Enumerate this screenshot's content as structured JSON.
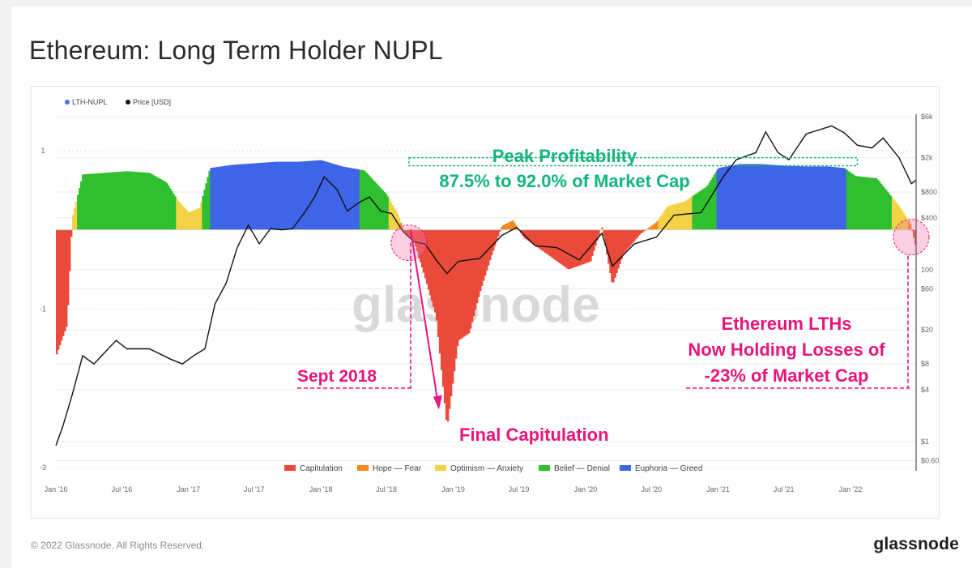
{
  "title": "Ethereum: Long Term Holder NUPL",
  "footer": "© 2022 Glassnode. All Rights Reserved.",
  "brand": "glassnode",
  "watermark": "glassnode",
  "chart_data": {
    "type": "bar",
    "legend_top": [
      {
        "name": "LTH-NUPL",
        "color": "#4a6cf7"
      },
      {
        "name": "Price [USD]",
        "color": "#111111"
      }
    ],
    "legend_bottom": [
      {
        "name": "Capitulation",
        "color": "#ea4a3a"
      },
      {
        "name": "Hope — Fear",
        "color": "#f5891f"
      },
      {
        "name": "Optimism — Anxiety",
        "color": "#f3d246"
      },
      {
        "name": "Belief — Denial",
        "color": "#2fbf2f"
      },
      {
        "name": "Euphoria — Greed",
        "color": "#3e64e8"
      }
    ],
    "x_ticks": [
      "Jan '16",
      "Jul '16",
      "Jan '17",
      "Jul '17",
      "Jan '18",
      "Jul '18",
      "Jan '19",
      "Jul '19",
      "Jan '20",
      "Jul '20",
      "Jan '21",
      "Jul '21",
      "Jan '22"
    ],
    "x_range": [
      "2016-01-01",
      "2022-07-01"
    ],
    "y_left_ticks": [
      {
        "label": "1",
        "value": 1
      },
      {
        "label": "-1",
        "value": -1
      },
      {
        "label": "-3",
        "value": -3
      }
    ],
    "y_left_range": [
      -3,
      1.5
    ],
    "y_right_ticks": [
      {
        "label": "$6k",
        "value": 6000
      },
      {
        "label": "$2k",
        "value": 2000
      },
      {
        "label": "$800",
        "value": 800
      },
      {
        "label": "$400",
        "value": 400
      },
      {
        "label": "100",
        "value": 100
      },
      {
        "label": "$60",
        "value": 60
      },
      {
        "label": "$20",
        "value": 20
      },
      {
        "label": "$8",
        "value": 8
      },
      {
        "label": "$4",
        "value": 4
      },
      {
        "label": "$1",
        "value": 1
      },
      {
        "label": "$0.60",
        "value": 0.6
      }
    ],
    "y_right_scale": "log",
    "y_right_range": [
      0.5,
      7000
    ],
    "nupl_series": [
      [
        "2016-01-01",
        -1.6
      ],
      [
        "2016-02-01",
        -1.2
      ],
      [
        "2016-02-15",
        0.15
      ],
      [
        "2016-03-15",
        0.7
      ],
      [
        "2016-05-15",
        0.72
      ],
      [
        "2016-07-15",
        0.74
      ],
      [
        "2016-09-15",
        0.72
      ],
      [
        "2016-11-01",
        0.6
      ],
      [
        "2016-12-01",
        0.38
      ],
      [
        "2017-01-01",
        0.22
      ],
      [
        "2017-02-01",
        0.28
      ],
      [
        "2017-03-01",
        0.78
      ],
      [
        "2017-05-01",
        0.82
      ],
      [
        "2017-07-01",
        0.84
      ],
      [
        "2017-09-01",
        0.86
      ],
      [
        "2017-11-01",
        0.86
      ],
      [
        "2018-01-01",
        0.88
      ],
      [
        "2018-03-01",
        0.8
      ],
      [
        "2018-05-01",
        0.75
      ],
      [
        "2018-07-01",
        0.45
      ],
      [
        "2018-08-01",
        0.2
      ],
      [
        "2018-08-20",
        -0.05
      ],
      [
        "2018-09-15",
        -0.15
      ],
      [
        "2018-10-15",
        -0.6
      ],
      [
        "2018-11-15",
        -1.1
      ],
      [
        "2018-12-15",
        -2.5
      ],
      [
        "2019-01-15",
        -1.4
      ],
      [
        "2019-02-15",
        -1.3
      ],
      [
        "2019-03-15",
        -0.8
      ],
      [
        "2019-04-15",
        -0.35
      ],
      [
        "2019-05-15",
        0.05
      ],
      [
        "2019-06-15",
        0.12
      ],
      [
        "2019-07-15",
        -0.1
      ],
      [
        "2019-09-15",
        -0.3
      ],
      [
        "2019-11-15",
        -0.5
      ],
      [
        "2020-01-15",
        -0.4
      ],
      [
        "2020-02-15",
        0.05
      ],
      [
        "2020-03-15",
        -0.7
      ],
      [
        "2020-04-15",
        -0.3
      ],
      [
        "2020-06-01",
        -0.05
      ],
      [
        "2020-07-15",
        0.1
      ],
      [
        "2020-08-15",
        0.3
      ],
      [
        "2020-10-01",
        0.36
      ],
      [
        "2020-12-01",
        0.55
      ],
      [
        "2021-01-01",
        0.78
      ],
      [
        "2021-03-01",
        0.83
      ],
      [
        "2021-05-01",
        0.83
      ],
      [
        "2021-07-01",
        0.81
      ],
      [
        "2021-09-01",
        0.8
      ],
      [
        "2021-11-01",
        0.8
      ],
      [
        "2021-12-15",
        0.78
      ],
      [
        "2022-01-15",
        0.68
      ],
      [
        "2022-03-15",
        0.65
      ],
      [
        "2022-05-15",
        0.3
      ],
      [
        "2022-06-15",
        0.08
      ],
      [
        "2022-07-01",
        -0.23
      ]
    ],
    "price_series": [
      [
        "2016-01-01",
        0.9
      ],
      [
        "2016-01-20",
        1.5
      ],
      [
        "2016-02-15",
        3.5
      ],
      [
        "2016-03-15",
        10
      ],
      [
        "2016-04-15",
        8
      ],
      [
        "2016-06-15",
        15
      ],
      [
        "2016-07-15",
        12
      ],
      [
        "2016-09-15",
        12
      ],
      [
        "2016-11-15",
        9
      ],
      [
        "2016-12-15",
        8
      ],
      [
        "2017-01-15",
        10
      ],
      [
        "2017-02-15",
        12
      ],
      [
        "2017-03-15",
        40
      ],
      [
        "2017-04-15",
        70
      ],
      [
        "2017-05-15",
        180
      ],
      [
        "2017-06-15",
        330
      ],
      [
        "2017-07-15",
        200
      ],
      [
        "2017-08-15",
        300
      ],
      [
        "2017-09-15",
        290
      ],
      [
        "2017-10-15",
        300
      ],
      [
        "2017-11-15",
        450
      ],
      [
        "2017-12-15",
        700
      ],
      [
        "2018-01-10",
        1200
      ],
      [
        "2018-02-15",
        850
      ],
      [
        "2018-03-15",
        480
      ],
      [
        "2018-04-15",
        600
      ],
      [
        "2018-05-15",
        700
      ],
      [
        "2018-06-15",
        480
      ],
      [
        "2018-07-15",
        450
      ],
      [
        "2018-08-15",
        280
      ],
      [
        "2018-09-15",
        210
      ],
      [
        "2018-10-15",
        200
      ],
      [
        "2018-11-15",
        130
      ],
      [
        "2018-12-15",
        90
      ],
      [
        "2019-01-15",
        125
      ],
      [
        "2019-03-15",
        135
      ],
      [
        "2019-05-15",
        250
      ],
      [
        "2019-06-25",
        310
      ],
      [
        "2019-08-15",
        190
      ],
      [
        "2019-10-15",
        180
      ],
      [
        "2019-12-15",
        130
      ],
      [
        "2020-02-15",
        265
      ],
      [
        "2020-03-15",
        110
      ],
      [
        "2020-05-15",
        200
      ],
      [
        "2020-07-15",
        240
      ],
      [
        "2020-09-01",
        430
      ],
      [
        "2020-11-15",
        460
      ],
      [
        "2021-01-15",
        1200
      ],
      [
        "2021-02-20",
        1900
      ],
      [
        "2021-04-15",
        2300
      ],
      [
        "2021-05-12",
        4000
      ],
      [
        "2021-06-15",
        2300
      ],
      [
        "2021-07-15",
        1900
      ],
      [
        "2021-09-01",
        3800
      ],
      [
        "2021-11-10",
        4700
      ],
      [
        "2021-12-15",
        3900
      ],
      [
        "2022-01-20",
        2800
      ],
      [
        "2022-03-01",
        2600
      ],
      [
        "2022-04-01",
        3400
      ],
      [
        "2022-05-15",
        2000
      ],
      [
        "2022-06-18",
        1000
      ],
      [
        "2022-07-01",
        1100
      ]
    ],
    "annotations": {
      "peak_line1": "Peak Profitability",
      "peak_line2": "87.5% to 92.0% of Market Cap",
      "sept_2018": "Sept 2018",
      "final_capitulation": "Final Capitulation",
      "losses_line1": "Ethereum LTHs",
      "losses_line2": "Now Holding Losses of",
      "losses_line3": "-23% of Market Cap"
    }
  }
}
